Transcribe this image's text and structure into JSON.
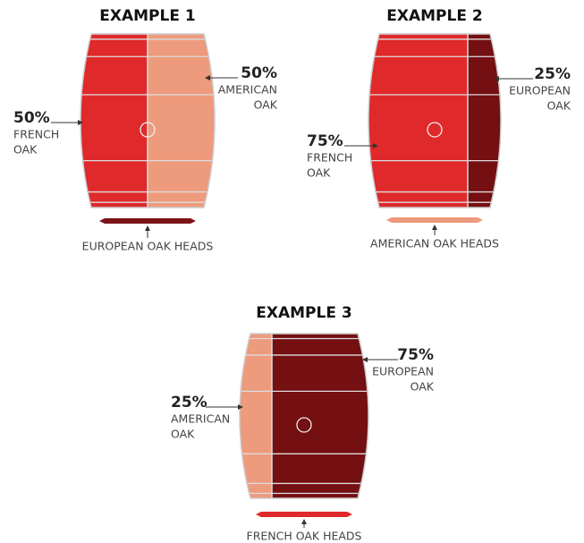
{
  "examples": [
    {
      "title": "EXAMPLE 1",
      "heads_label": "EUROPEAN OAK HEADS",
      "heads_color": "#7a1416",
      "segments": [
        {
          "value": 50,
          "label": "50%",
          "name_lines": [
            "FRENCH",
            "OAK"
          ],
          "color": "#e0292a"
        },
        {
          "value": 50,
          "label": "50%",
          "name_lines": [
            "AMERICAN",
            "OAK"
          ],
          "color": "#ee9a7c"
        }
      ]
    },
    {
      "title": "EXAMPLE 2",
      "heads_label": "AMERICAN OAK HEADS",
      "heads_color": "#ee9a7c",
      "segments": [
        {
          "value": 75,
          "label": "75%",
          "name_lines": [
            "FRENCH",
            "OAK"
          ],
          "color": "#e0292a"
        },
        {
          "value": 25,
          "label": "25%",
          "name_lines": [
            "EUROPEAN",
            "OAK"
          ],
          "color": "#740f12"
        }
      ]
    },
    {
      "title": "EXAMPLE 3",
      "heads_label": "FRENCH OAK HEADS",
      "heads_color": "#e0292a",
      "segments": [
        {
          "value": 25,
          "label": "25%",
          "name_lines": [
            "AMERICAN",
            "OAK"
          ],
          "color": "#ee9a7c"
        },
        {
          "value": 75,
          "label": "75%",
          "name_lines": [
            "EUROPEAN",
            "OAK"
          ],
          "color": "#740f12"
        }
      ]
    }
  ]
}
